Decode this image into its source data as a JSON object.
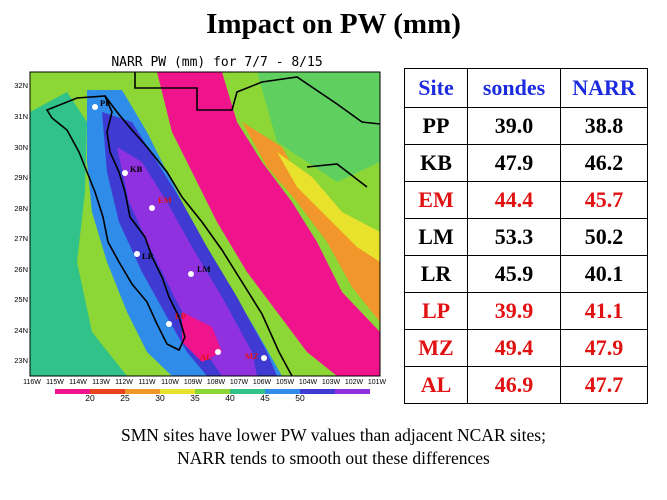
{
  "title": "Impact on PW (mm)",
  "map": {
    "title": "NARR PW (mm) for 7/7 - 8/15",
    "lat_labels": [
      "32N",
      "31N",
      "30N",
      "29N",
      "28N",
      "27N",
      "26N",
      "25N",
      "24N",
      "23N"
    ],
    "lon_labels": [
      "116W",
      "115W",
      "114W",
      "113W",
      "112W",
      "111W",
      "110W",
      "109W",
      "108W",
      "107W",
      "106W",
      "105W",
      "104W",
      "103W",
      "102W",
      "101W"
    ],
    "colorbar": {
      "ticks": [
        "20",
        "25",
        "30",
        "35",
        "40",
        "45",
        "50"
      ],
      "colors": [
        "#f0148c",
        "#e8431d",
        "#f0962a",
        "#e9e22c",
        "#8cd635",
        "#31c28a",
        "#2f8ce9",
        "#3f3ad1",
        "#8f31de"
      ]
    },
    "sites": [
      {
        "name": "PP",
        "color": "#000000"
      },
      {
        "name": "KB",
        "color": "#000000"
      },
      {
        "name": "EM",
        "color": "#e11111"
      },
      {
        "name": "LR",
        "color": "#000000"
      },
      {
        "name": "LM",
        "color": "#000000"
      },
      {
        "name": "LP",
        "color": "#e11111"
      },
      {
        "name": "AL",
        "color": "#e11111"
      },
      {
        "name": "MZ",
        "color": "#e11111"
      }
    ]
  },
  "table": {
    "headers": [
      "Site",
      "sondes",
      "NARR"
    ],
    "rows": [
      {
        "site": "PP",
        "sondes": "39.0",
        "narr": "38.8"
      },
      {
        "site": "KB",
        "sondes": "47.9",
        "narr": "46.2"
      },
      {
        "site": "EM",
        "sondes": "44.4",
        "narr": "45.7"
      },
      {
        "site": "LM",
        "sondes": "53.3",
        "narr": "50.2"
      },
      {
        "site": "LR",
        "sondes": "45.9",
        "narr": "40.1"
      },
      {
        "site": "LP",
        "sondes": "39.9",
        "narr": "41.1"
      },
      {
        "site": "MZ",
        "sondes": "49.4",
        "narr": "47.9"
      },
      {
        "site": "AL",
        "sondes": "46.9",
        "narr": "47.7"
      }
    ]
  },
  "caption": {
    "line1": "SMN sites have lower PW values than adjacent NCAR sites;",
    "line2": "NARR tends to smooth out these differences"
  }
}
